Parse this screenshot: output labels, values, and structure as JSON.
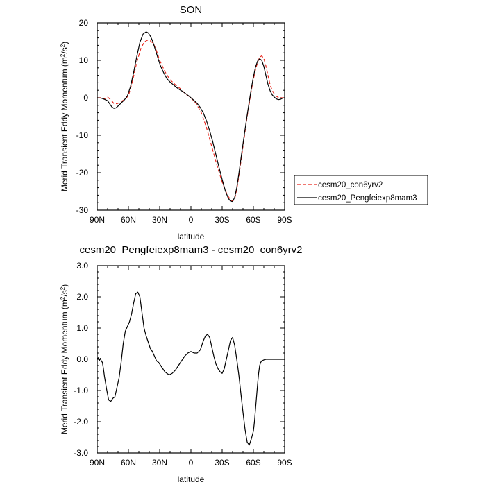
{
  "chart_data": [
    {
      "type": "line",
      "title": "SON",
      "xlabel": "latitude",
      "ylabel": "Merid Transient Eddy Momentum (m²/s²)",
      "ylabel_unit_base": "Merid Transient Eddy Momentum (m",
      "ylabel_sup1": "2",
      "ylabel_mid": "/s",
      "ylabel_sup2": "2",
      "ylabel_end": ")",
      "x_ticks": [
        {
          "value": 90,
          "label": "90N"
        },
        {
          "value": 60,
          "label": "60N"
        },
        {
          "value": 30,
          "label": "30N"
        },
        {
          "value": 0,
          "label": "0"
        },
        {
          "value": -30,
          "label": "30S"
        },
        {
          "value": -60,
          "label": "60S"
        },
        {
          "value": -90,
          "label": "90S"
        }
      ],
      "y_ticks": [
        {
          "value": 20,
          "label": "20"
        },
        {
          "value": 10,
          "label": "10"
        },
        {
          "value": 0,
          "label": "0"
        },
        {
          "value": -10,
          "label": "-10"
        },
        {
          "value": -20,
          "label": "-20"
        },
        {
          "value": -30,
          "label": "-30"
        }
      ],
      "xlim": [
        90,
        -90
      ],
      "ylim": [
        -30,
        20
      ],
      "series": [
        {
          "name": "cesm20_con6yrv2",
          "color": "#e8251b",
          "dash": "dashed",
          "x": [
            90,
            86,
            83,
            80,
            77,
            74,
            71,
            68,
            64,
            60,
            56,
            52,
            48,
            45,
            42,
            39,
            36,
            33,
            30,
            25,
            20,
            15,
            10,
            5,
            0,
            -5,
            -10,
            -15,
            -20,
            -25,
            -30,
            -35,
            -38,
            -40,
            -42,
            -44,
            -46,
            -48,
            -50,
            -52,
            -54,
            -56,
            -58,
            -60,
            -62,
            -64,
            -66,
            -68,
            -70,
            -72,
            -74,
            -76,
            -78,
            -80,
            -82,
            -84,
            -86,
            -88,
            -90
          ],
          "y": [
            0,
            0,
            -0.3,
            0.2,
            -0.5,
            -1.5,
            -1.6,
            -1.2,
            -0.5,
            0.5,
            4.5,
            9.5,
            13.2,
            14.8,
            15.4,
            15.2,
            14.5,
            12.5,
            10.0,
            7.0,
            4.8,
            3.5,
            2.4,
            1.0,
            0.0,
            -1.5,
            -4.0,
            -8.0,
            -13.0,
            -18.0,
            -22.5,
            -26.0,
            -27.2,
            -27.6,
            -27.0,
            -24.5,
            -21.0,
            -17.0,
            -13.0,
            -9.0,
            -5.0,
            -1.5,
            2.0,
            5.0,
            7.5,
            9.5,
            10.8,
            11.2,
            10.5,
            8.5,
            6.0,
            3.5,
            2.0,
            1.0,
            0.4,
            0.1,
            0,
            0,
            0
          ]
        },
        {
          "name": "cesm20_Pengfeiexp8mam3",
          "color": "#000000",
          "dash": "solid",
          "x": [
            90,
            86,
            83,
            80,
            78,
            76,
            74,
            72,
            70,
            67,
            64,
            61,
            58,
            55,
            52,
            49,
            46,
            43,
            41,
            39,
            37,
            35,
            33,
            31,
            29,
            26,
            23,
            20,
            17,
            14,
            11,
            8,
            5,
            2,
            0,
            -3,
            -6,
            -9,
            -12,
            -15,
            -18,
            -21,
            -24,
            -27,
            -30,
            -33,
            -36,
            -38,
            -40,
            -42,
            -44,
            -46,
            -48,
            -50,
            -52,
            -54,
            -56,
            -58,
            -60,
            -62,
            -64,
            -66,
            -68,
            -70,
            -72,
            -74,
            -76,
            -78,
            -80,
            -82,
            -84,
            -86,
            -88,
            -90
          ],
          "y": [
            0,
            -0.1,
            -0.4,
            -0.8,
            -1.6,
            -2.4,
            -2.8,
            -2.7,
            -2.2,
            -1.4,
            -0.6,
            0.5,
            3.0,
            6.8,
            11.0,
            14.8,
            17.0,
            17.6,
            17.3,
            16.5,
            15.3,
            13.6,
            11.8,
            10.0,
            8.4,
            6.6,
            5.1,
            4.2,
            3.5,
            2.8,
            2.2,
            1.7,
            1.1,
            0.5,
            0.0,
            -0.7,
            -1.5,
            -2.6,
            -4.1,
            -6.2,
            -8.8,
            -11.8,
            -15.2,
            -18.6,
            -21.8,
            -24.8,
            -26.9,
            -27.6,
            -27.7,
            -26.6,
            -24.0,
            -20.3,
            -16.3,
            -12.3,
            -8.4,
            -4.6,
            -1.0,
            2.5,
            5.6,
            8.2,
            9.8,
            10.4,
            10.0,
            8.4,
            6.0,
            3.6,
            1.9,
            0.8,
            0.2,
            -0.3,
            -0.5,
            -0.4,
            -0.1,
            0
          ]
        }
      ]
    },
    {
      "type": "line",
      "title": "cesm20_Pengfeiexp8mam3 - cesm20_con6yrv2",
      "xlabel": "latitude",
      "ylabel": "Merid Transient Eddy Momentum (m²/s²)",
      "ylabel_unit_base": "Merid Transient Eddy Momentum (m",
      "ylabel_sup1": "2",
      "ylabel_mid": "/s",
      "ylabel_sup2": "2",
      "ylabel_end": ")",
      "x_ticks": [
        {
          "value": 90,
          "label": "90N"
        },
        {
          "value": 60,
          "label": "60N"
        },
        {
          "value": 30,
          "label": "30N"
        },
        {
          "value": 0,
          "label": "0"
        },
        {
          "value": -30,
          "label": "30S"
        },
        {
          "value": -60,
          "label": "60S"
        },
        {
          "value": -90,
          "label": "90S"
        }
      ],
      "y_ticks": [
        {
          "value": 3,
          "label": "3.0"
        },
        {
          "value": 2,
          "label": "2.0"
        },
        {
          "value": 1,
          "label": "1.0"
        },
        {
          "value": 0,
          "label": "0.0"
        },
        {
          "value": -1,
          "label": "-1.0"
        },
        {
          "value": -2,
          "label": "-2.0"
        },
        {
          "value": -3,
          "label": "-3.0"
        }
      ],
      "xlim": [
        90,
        -90
      ],
      "ylim": [
        -3,
        3
      ],
      "series": [
        {
          "color": "#000000",
          "dash": "solid",
          "x": [
            90,
            89,
            88,
            87,
            86,
            85,
            84,
            83,
            81,
            79,
            77,
            75,
            73,
            71,
            69,
            67,
            65,
            63,
            61,
            59,
            57,
            55,
            53,
            51,
            49,
            47,
            45,
            43,
            41,
            39,
            37,
            35,
            33,
            31,
            29,
            27,
            25,
            23,
            21,
            18,
            15,
            12,
            9,
            6,
            3,
            0,
            -3,
            -6,
            -9,
            -12,
            -14,
            -16,
            -18,
            -20,
            -22,
            -24,
            -26,
            -28,
            -30,
            -32,
            -34,
            -36,
            -38,
            -40,
            -42,
            -44,
            -46,
            -48,
            -50,
            -52,
            -54,
            -56,
            -58,
            -60,
            -61,
            -62,
            -63,
            -64,
            -65,
            -66,
            -67,
            -68,
            -70,
            -72,
            -74,
            -75,
            -76,
            -77,
            -78,
            -80,
            -82,
            -84,
            -86,
            -88,
            -89,
            -90
          ],
          "y": [
            0.0,
            0.05,
            -0.05,
            0.03,
            -0.05,
            -0.1,
            -0.3,
            -0.55,
            -0.95,
            -1.3,
            -1.35,
            -1.25,
            -1.2,
            -0.9,
            -0.6,
            -0.1,
            0.5,
            0.9,
            1.05,
            1.2,
            1.45,
            1.8,
            2.1,
            2.15,
            2.0,
            1.5,
            1.0,
            0.75,
            0.55,
            0.35,
            0.25,
            0.1,
            -0.05,
            -0.1,
            -0.2,
            -0.3,
            -0.4,
            -0.45,
            -0.5,
            -0.45,
            -0.35,
            -0.2,
            -0.05,
            0.1,
            0.2,
            0.25,
            0.2,
            0.2,
            0.3,
            0.6,
            0.75,
            0.8,
            0.7,
            0.4,
            0.1,
            -0.15,
            -0.3,
            -0.4,
            -0.45,
            -0.3,
            0.0,
            0.3,
            0.6,
            0.7,
            0.45,
            0.0,
            -0.5,
            -1.1,
            -1.7,
            -2.25,
            -2.65,
            -2.75,
            -2.55,
            -2.3,
            -2.0,
            -1.6,
            -1.2,
            -0.8,
            -0.45,
            -0.2,
            -0.1,
            -0.05,
            -0.02,
            0.0,
            0.0,
            0.0,
            0.0,
            0.0,
            0.0,
            0.0,
            0.0,
            0.0,
            0.0,
            0.0,
            0.0,
            0.0
          ]
        }
      ]
    }
  ],
  "legend": {
    "entries": [
      "cesm20_con6yrv2",
      "cesm20_Pengfeiexp8mam3"
    ]
  }
}
